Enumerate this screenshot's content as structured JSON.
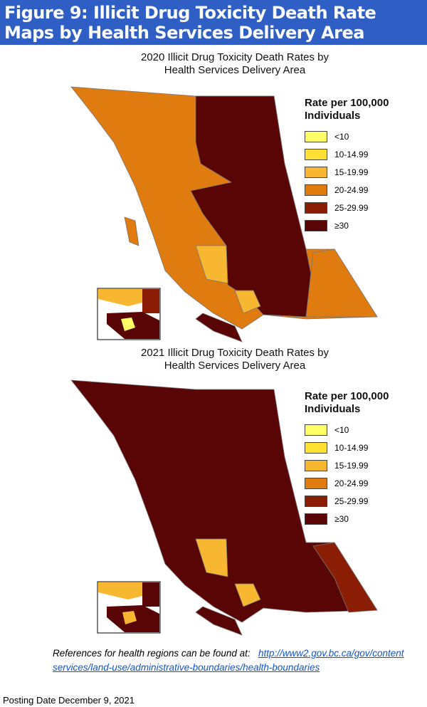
{
  "header": {
    "title": "Figure 9: Illicit Drug Toxicity Death Rate Maps by Health Services Delivery Area"
  },
  "maps": [
    {
      "title": [
        "2020 Illicit Drug Toxicity Death Rates by",
        "Health Services Delivery Area"
      ],
      "legend": {
        "title": [
          "Rate per 100,000",
          "Individuals"
        ],
        "items": [
          {
            "label": "<10",
            "color": "#ffff66"
          },
          {
            "label": "10-14.99",
            "color": "#ffe135"
          },
          {
            "label": "15-19.99",
            "color": "#f7b731"
          },
          {
            "label": "20-24.99",
            "color": "#e07b10"
          },
          {
            "label": "25-29.99",
            "color": "#8c1d05"
          },
          {
            "label": "≥30",
            "color": "#5a0505"
          }
        ]
      }
    },
    {
      "title": [
        "2021 Illicit Drug Toxicity Death Rates by",
        "Health Services Delivery Area"
      ],
      "legend": {
        "title": [
          "Rate per 100,000",
          "Individuals"
        ],
        "items": [
          {
            "label": "<10",
            "color": "#ffff66"
          },
          {
            "label": "10-14.99",
            "color": "#ffe135"
          },
          {
            "label": "15-19.99",
            "color": "#f7b731"
          },
          {
            "label": "20-24.99",
            "color": "#e07b10"
          },
          {
            "label": "25-29.99",
            "color": "#8c1d05"
          },
          {
            "label": "≥30",
            "color": "#5a0505"
          }
        ]
      }
    }
  ],
  "references": {
    "text": "References for health regions can be found at:",
    "link": [
      "http://www2.gov.bc.ca/gov/content",
      "services/land-use/administrative-boundaries/health-boundaries"
    ]
  },
  "posting_date": "Posting Date December 9, 2021"
}
